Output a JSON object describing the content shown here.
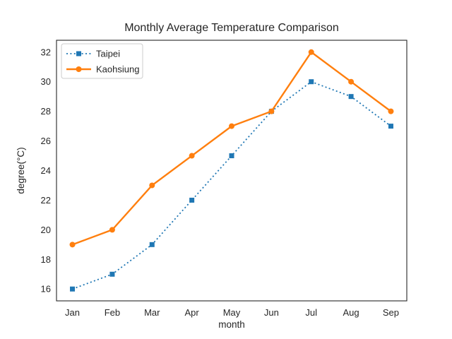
{
  "title": "Monthly Average Temperature Comparison",
  "chart_data": {
    "type": "line",
    "title": "Monthly Average Temperature Comparison",
    "xlabel": "month",
    "ylabel": "degree(°C)",
    "categories": [
      "Jan",
      "Feb",
      "Mar",
      "Apr",
      "May",
      "Jun",
      "Jul",
      "Aug",
      "Sep"
    ],
    "series": [
      {
        "name": "Taipei",
        "values": [
          16,
          17,
          19,
          22,
          25,
          28,
          30,
          29,
          27
        ],
        "color": "#1f77b4",
        "line_style": "dotted",
        "marker": "square"
      },
      {
        "name": "Kaohsiung",
        "values": [
          19,
          20,
          23,
          25,
          27,
          28,
          32,
          30,
          28
        ],
        "color": "#ff7f0e",
        "line_style": "solid",
        "marker": "circle"
      }
    ],
    "yticks": [
      16,
      18,
      20,
      22,
      24,
      26,
      28,
      30,
      32
    ],
    "ylim": [
      15.2,
      32.8
    ],
    "xlim": [
      -0.4,
      8.4
    ],
    "grid": false,
    "legend_position": "upper left"
  },
  "colors": {
    "background": "#ffffff",
    "axis_frame": "#262626",
    "text": "#262626",
    "legend_border": "#cccccc",
    "legend_background": "#ffffff"
  }
}
